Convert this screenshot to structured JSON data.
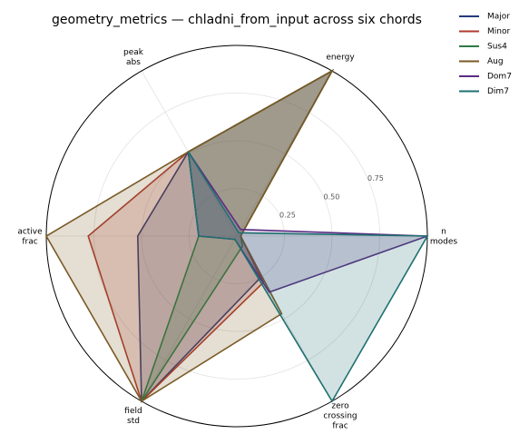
{
  "chart_data": {
    "type": "radar",
    "title": "geometry_metrics — chladni_from_input across six chords",
    "categories": [
      "n modes",
      "energy",
      "peak abs",
      "active frac",
      "field std",
      "zero crossing frac"
    ],
    "ylim": [
      0,
      1
    ],
    "yticks": [
      0.25,
      {
        "value": 0.5,
        "label": "0.50"
      },
      0.75
    ],
    "grid": true,
    "legend": "upper right",
    "series": [
      {
        "name": "Major",
        "color": "#243a7c",
        "values": [
          0.02,
          1.0,
          0.51,
          0.52,
          1.0,
          0.25
        ]
      },
      {
        "name": "Minor",
        "color": "#b03a2e",
        "values": [
          0.02,
          1.0,
          0.51,
          0.78,
          1.0,
          0.28
        ]
      },
      {
        "name": "Sus4",
        "color": "#2e7a45",
        "values": [
          0.02,
          1.0,
          0.51,
          0.2,
          1.0,
          0.06
        ]
      },
      {
        "name": "Aug",
        "color": "#7a5a25",
        "values": [
          0.02,
          1.0,
          0.51,
          1.0,
          1.0,
          0.47
        ]
      },
      {
        "name": "Dom7",
        "color": "#5b2c83",
        "values": [
          1.0,
          0.04,
          0.51,
          0.2,
          0.02,
          0.34
        ]
      },
      {
        "name": "Dim7",
        "color": "#1f7070",
        "values": [
          1.0,
          0.02,
          0.51,
          0.2,
          0.02,
          1.0
        ]
      }
    ]
  }
}
